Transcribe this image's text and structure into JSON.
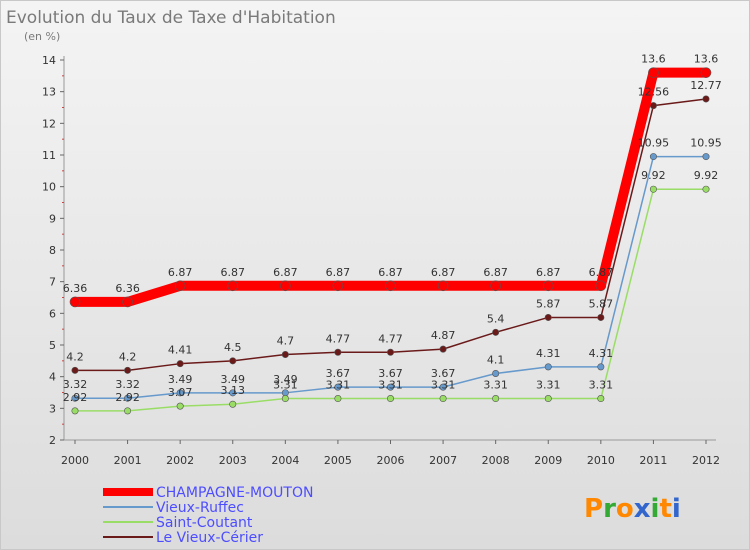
{
  "chart_data": {
    "type": "line",
    "title": "Evolution du Taux de Taxe d'Habitation",
    "subtitle": "(en %)",
    "x": [
      "2000",
      "2001",
      "2002",
      "2003",
      "2004",
      "2005",
      "2006",
      "2007",
      "2008",
      "2009",
      "2010",
      "2011",
      "2012"
    ],
    "ylim": [
      2,
      14
    ],
    "yticks": [
      2,
      3,
      4,
      5,
      6,
      7,
      8,
      9,
      10,
      11,
      12,
      13,
      14
    ],
    "grid": false,
    "legend_position": "bottom-left",
    "series": [
      {
        "name": "CHAMPAGNE-MOUTON",
        "color": "#ff0000",
        "values": [
          6.36,
          6.36,
          6.87,
          6.87,
          6.87,
          6.87,
          6.87,
          6.87,
          6.87,
          6.87,
          6.87,
          13.6,
          13.6
        ],
        "labels": [
          "6.36",
          "6.36",
          "6.87",
          "6.87",
          "6.87",
          "6.87",
          "6.87",
          "6.87",
          "6.87",
          "6.87",
          "6.87",
          "13.6",
          "13.6"
        ]
      },
      {
        "name": "Vieux-Ruffec",
        "color": "#6699cc",
        "values": [
          3.32,
          3.32,
          3.49,
          3.49,
          3.49,
          3.67,
          3.67,
          3.67,
          4.1,
          4.31,
          4.31,
          10.95,
          10.95
        ],
        "labels": [
          "3.32",
          "3.32",
          "3.49",
          "3.49",
          "3.49",
          "3.67",
          "3.67",
          "3.67",
          "4.1",
          "4.31",
          "4.31",
          "10.95",
          "10.95"
        ]
      },
      {
        "name": "Saint-Coutant",
        "color": "#99dd66",
        "values": [
          2.92,
          2.92,
          3.07,
          3.13,
          3.31,
          3.31,
          3.31,
          3.31,
          3.31,
          3.31,
          3.31,
          9.92,
          9.92
        ],
        "labels": [
          "2.92",
          "2.92",
          "3.07",
          "3.13",
          "3.31",
          "3.31",
          "3.31",
          "3.31",
          "3.31",
          "3.31",
          "3.31",
          "9.92",
          "9.92"
        ]
      },
      {
        "name": "Le Vieux-Cérier",
        "color": "#6b1a1a",
        "values": [
          4.2,
          4.2,
          4.41,
          4.5,
          4.7,
          4.77,
          4.77,
          4.87,
          5.4,
          5.87,
          5.87,
          12.56,
          12.77
        ],
        "labels": [
          "4.2",
          "4.2",
          "4.41",
          "4.5",
          "4.7",
          "4.77",
          "4.77",
          "4.87",
          "5.4",
          "5.87",
          "5.87",
          "12.56",
          "12.77"
        ]
      }
    ]
  },
  "branding": {
    "text": "Proxiti"
  }
}
